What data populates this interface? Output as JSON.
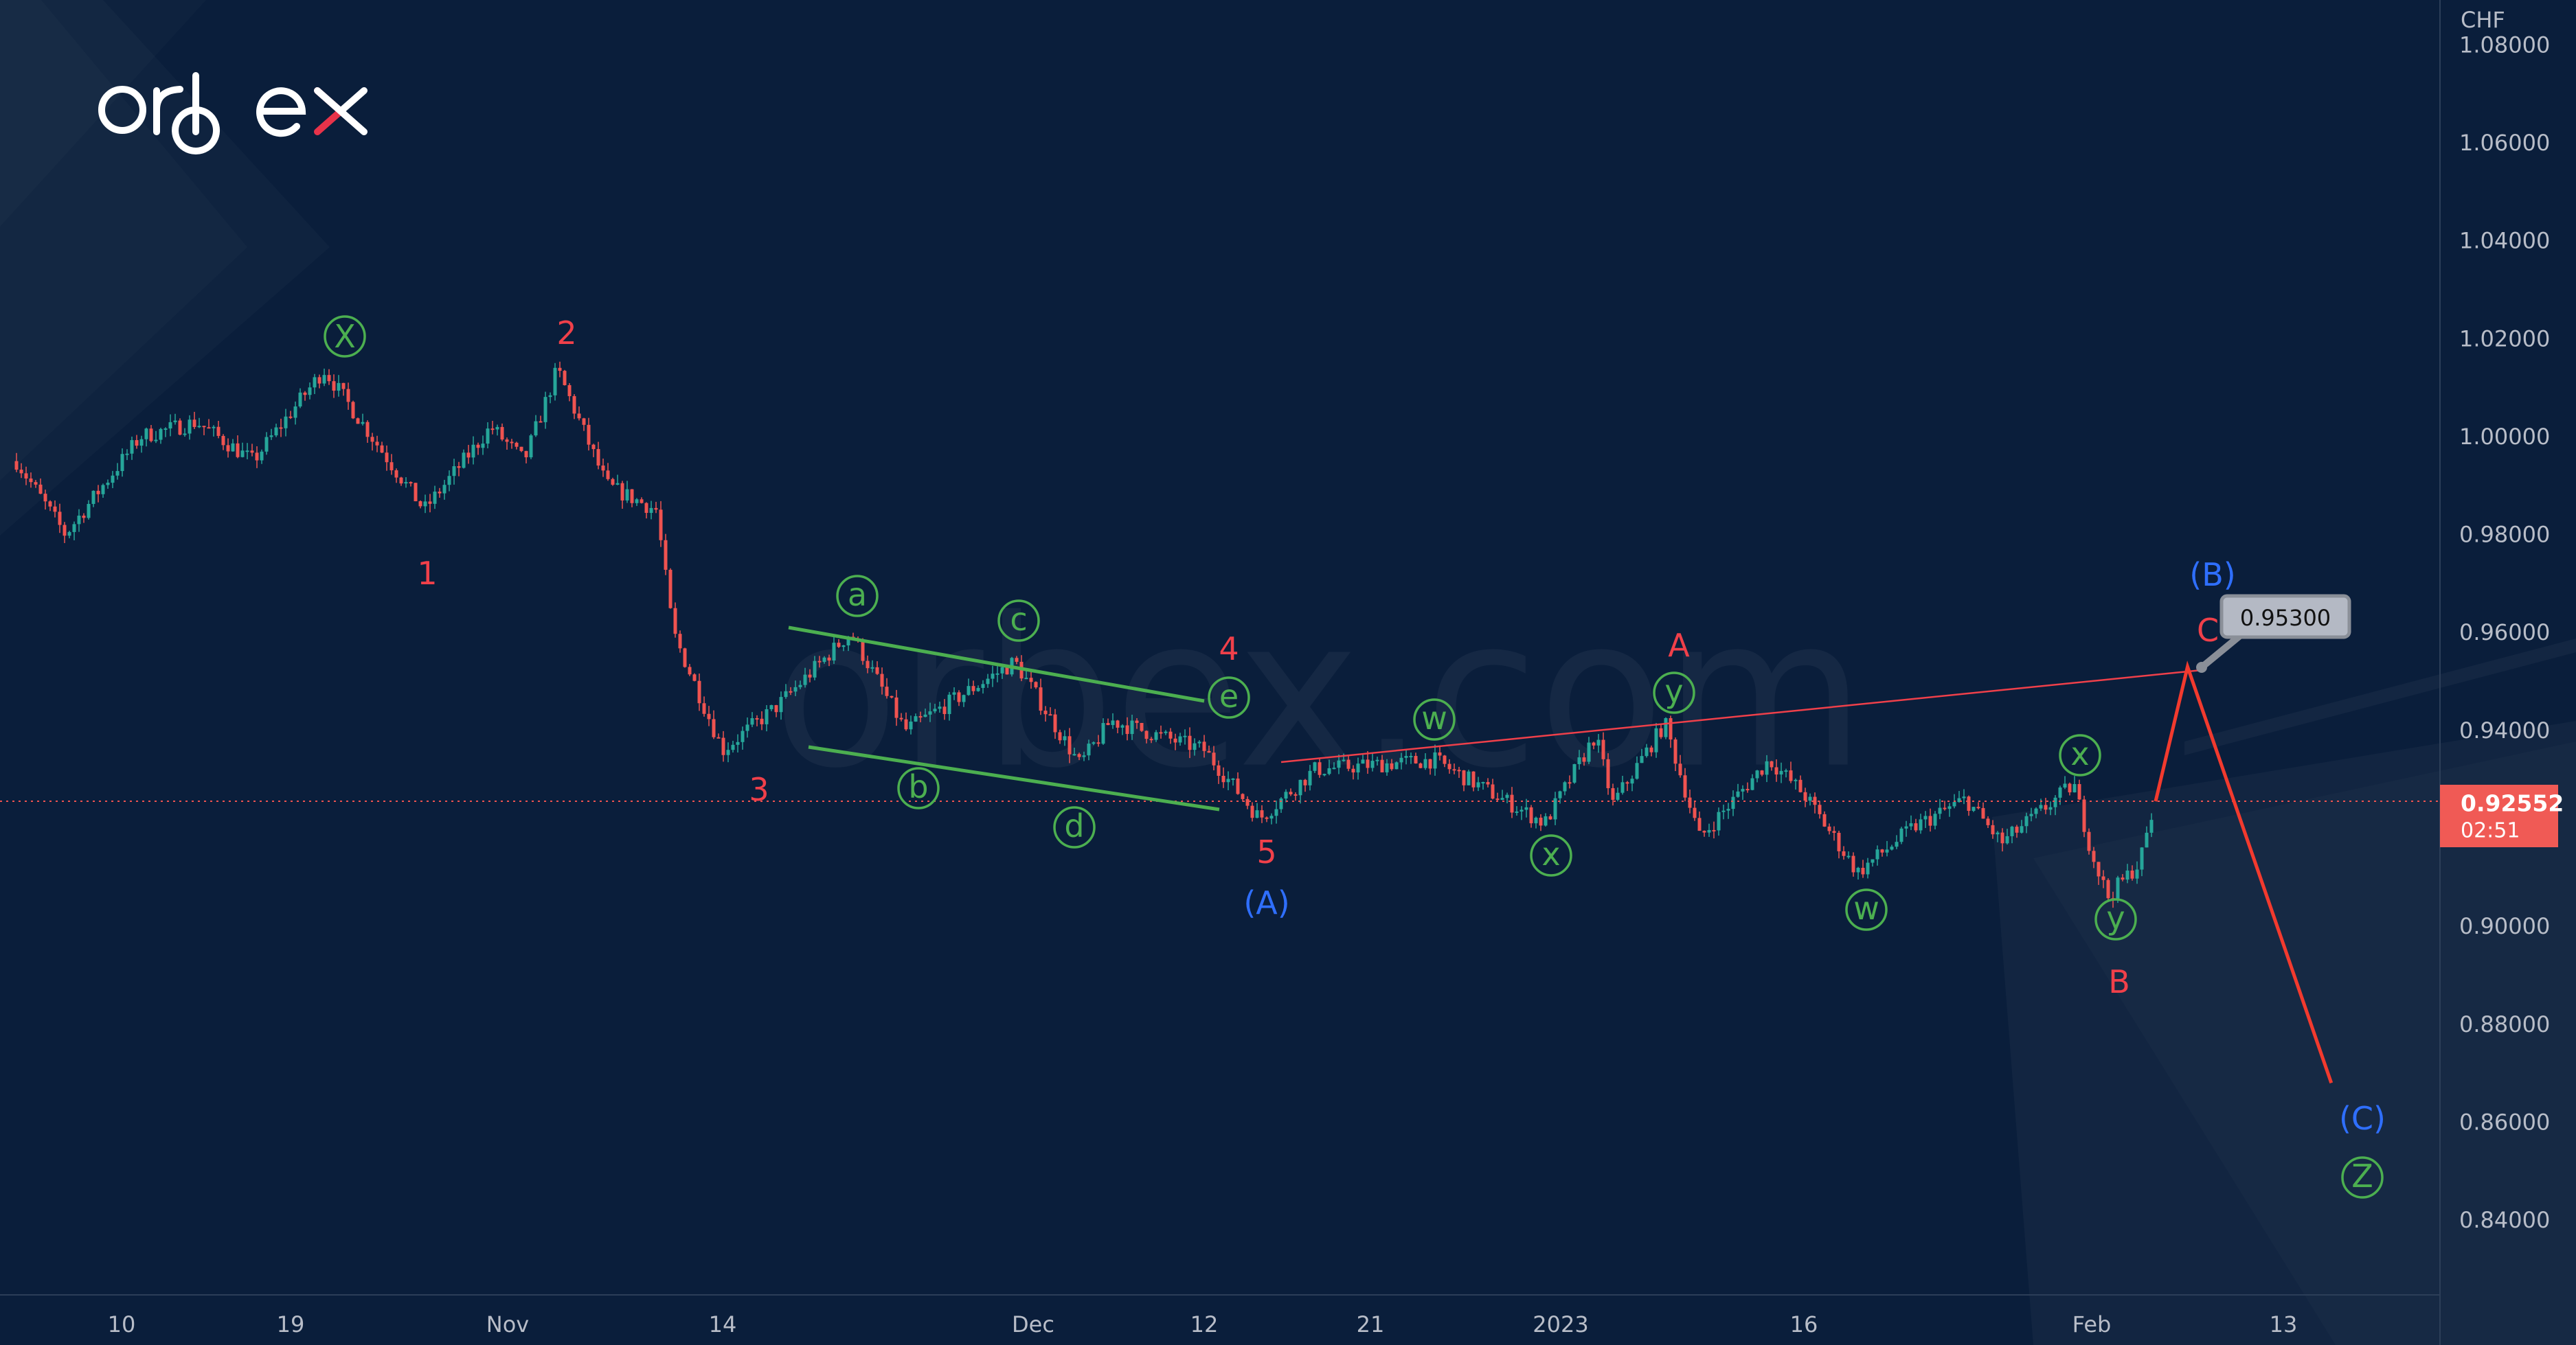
{
  "brand": {
    "logo_text": "orbex",
    "watermark": "orbex.com"
  },
  "chart_data": {
    "type": "candlestick",
    "currency_label": "CHF",
    "y_ticks": [
      "1.08000",
      "1.06000",
      "1.04000",
      "1.02000",
      "1.00000",
      "0.98000",
      "0.96000",
      "0.94000",
      "0.90000",
      "0.88000",
      "0.86000",
      "0.84000"
    ],
    "ylim": [
      0.83,
      1.085
    ],
    "x_ticks": [
      "10",
      "19",
      "Nov",
      "14",
      "Dec",
      "12",
      "21",
      "2023",
      "16",
      "Feb",
      "13"
    ],
    "price_path": [
      [
        "2022-10-04",
        0.995
      ],
      [
        "2022-10-07",
        0.98
      ],
      [
        "2022-10-11",
        1.0
      ],
      [
        "2022-10-14",
        1.003
      ],
      [
        "2022-10-17",
        0.995
      ],
      [
        "2022-10-21",
        1.0137
      ],
      [
        "2022-10-27",
        0.985
      ],
      [
        "2022-10-31",
        1.002
      ],
      [
        "2022-11-02",
        0.995
      ],
      [
        "2022-11-04",
        1.0137
      ],
      [
        "2022-11-07",
        0.99
      ],
      [
        "2022-11-10",
        0.985
      ],
      [
        "2022-11-11",
        0.96
      ],
      [
        "2022-11-14",
        0.936
      ],
      [
        "2022-11-17",
        0.945
      ],
      [
        "2022-11-21",
        0.96
      ],
      [
        "2022-11-24",
        0.94
      ],
      [
        "2022-11-30",
        0.954
      ],
      [
        "2022-12-04",
        0.933
      ],
      [
        "2022-12-06",
        0.942
      ],
      [
        "2022-12-12",
        0.936
      ],
      [
        "2022-12-15",
        0.922
      ],
      [
        "2022-12-18",
        0.932
      ],
      [
        "2022-12-25",
        0.934
      ],
      [
        "2023-01-01",
        0.921
      ],
      [
        "2023-01-04",
        0.939
      ],
      [
        "2023-01-05",
        0.925
      ],
      [
        "2023-01-08",
        0.9415
      ],
      [
        "2023-01-10",
        0.918
      ],
      [
        "2023-01-14",
        0.934
      ],
      [
        "2023-01-16",
        0.927
      ],
      [
        "2023-01-19",
        0.911
      ],
      [
        "2023-01-22",
        0.92
      ],
      [
        "2023-01-25",
        0.926
      ],
      [
        "2023-01-27",
        0.917
      ],
      [
        "2023-01-31",
        0.929
      ],
      [
        "2023-02-01",
        0.915
      ],
      [
        "2023-02-02",
        0.906
      ],
      [
        "2023-02-04",
        0.913
      ],
      [
        "2023-02-05",
        0.92552
      ]
    ],
    "projection": [
      [
        "2023-02-05",
        0.92552
      ],
      [
        "2023-02-07",
        0.953
      ],
      [
        "2023-02-16",
        0.868
      ]
    ],
    "current_price": {
      "value": "0.92552",
      "countdown": "02:51",
      "color": "#f05a55"
    },
    "target_callout": "0.95300",
    "colors": {
      "up": "#26a69a",
      "down": "#ef5350",
      "background": "#0a1e3b",
      "wave_red": "#f0404a",
      "wave_blue": "#2f6fff",
      "wave_green": "#4caf50"
    },
    "wave_labels": {
      "X": "X",
      "w1": "1",
      "w2": "2",
      "w3": "3",
      "w4": "4",
      "w5": "5",
      "A_paren": "(A)",
      "a": "a",
      "b": "b",
      "c": "c",
      "d": "d",
      "e": "e",
      "w_1": "w",
      "x_1": "x",
      "y_1": "y",
      "A": "A",
      "w_2": "w",
      "x_2": "x",
      "y_2": "y",
      "B": "B",
      "B_paren": "(B)",
      "C": "C",
      "C_paren": "(C)",
      "Z": "Z"
    }
  }
}
